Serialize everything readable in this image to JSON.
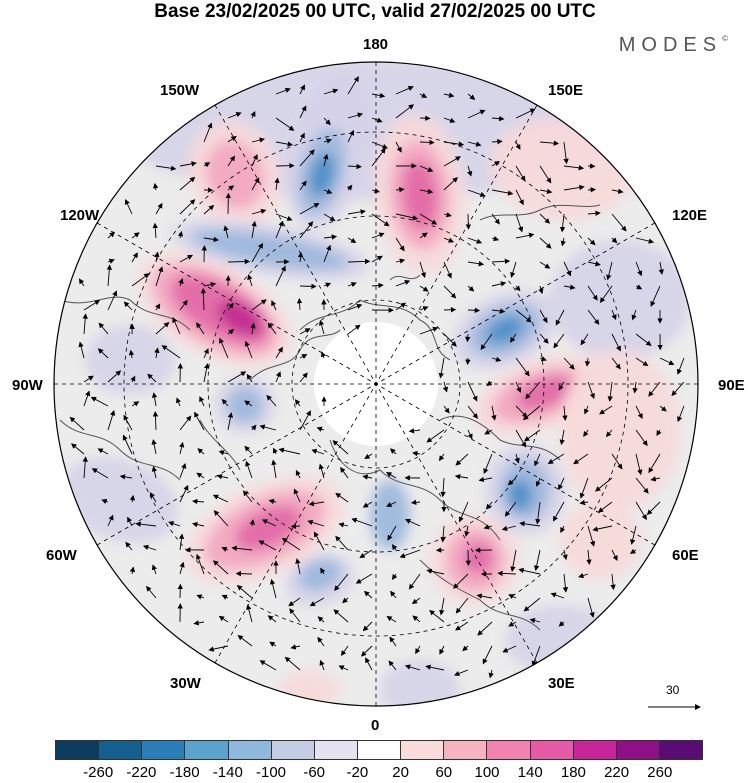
{
  "title": "Base 23/02/2025 00 UTC, valid 27/02/2025 00 UTC",
  "brand": "MODES",
  "brand_mark": "©",
  "longitude_labels": {
    "top": "180",
    "bottom": "0",
    "left": "90W",
    "right": "90E",
    "upper_left_1": "150W",
    "upper_left_2": "120W",
    "upper_right_1": "150E",
    "upper_right_2": "120E",
    "lower_left_1": "60W",
    "lower_left_2": "30W",
    "lower_right_1": "60E",
    "lower_right_2": "30E"
  },
  "vector_scale_label": "30",
  "colorbar": {
    "colors": [
      "#0b3c5d",
      "#135f8f",
      "#2b7fb8",
      "#5ba3cf",
      "#8fb9dc",
      "#c3cde6",
      "#e6e3f0",
      "#ffffff",
      "#fbdcdc",
      "#f6b3c0",
      "#f283b0",
      "#e75aa8",
      "#c9259b",
      "#8f0f88",
      "#5a0c74"
    ],
    "tick_labels": [
      "-260",
      "-220",
      "-180",
      "-140",
      "-100",
      "-60",
      "-20",
      "20",
      "60",
      "100",
      "140",
      "180",
      "220",
      "260"
    ]
  },
  "map_colors": {
    "background": "#ececec",
    "weak_negative": "#d6d4e8",
    "negative": "#9db9dc",
    "strong_negative": "#4d8fc7",
    "weak_positive": "#f7dada",
    "positive": "#f2a9c2",
    "strong_positive": "#e26aa8",
    "extreme_positive": "#c22b8f"
  }
}
